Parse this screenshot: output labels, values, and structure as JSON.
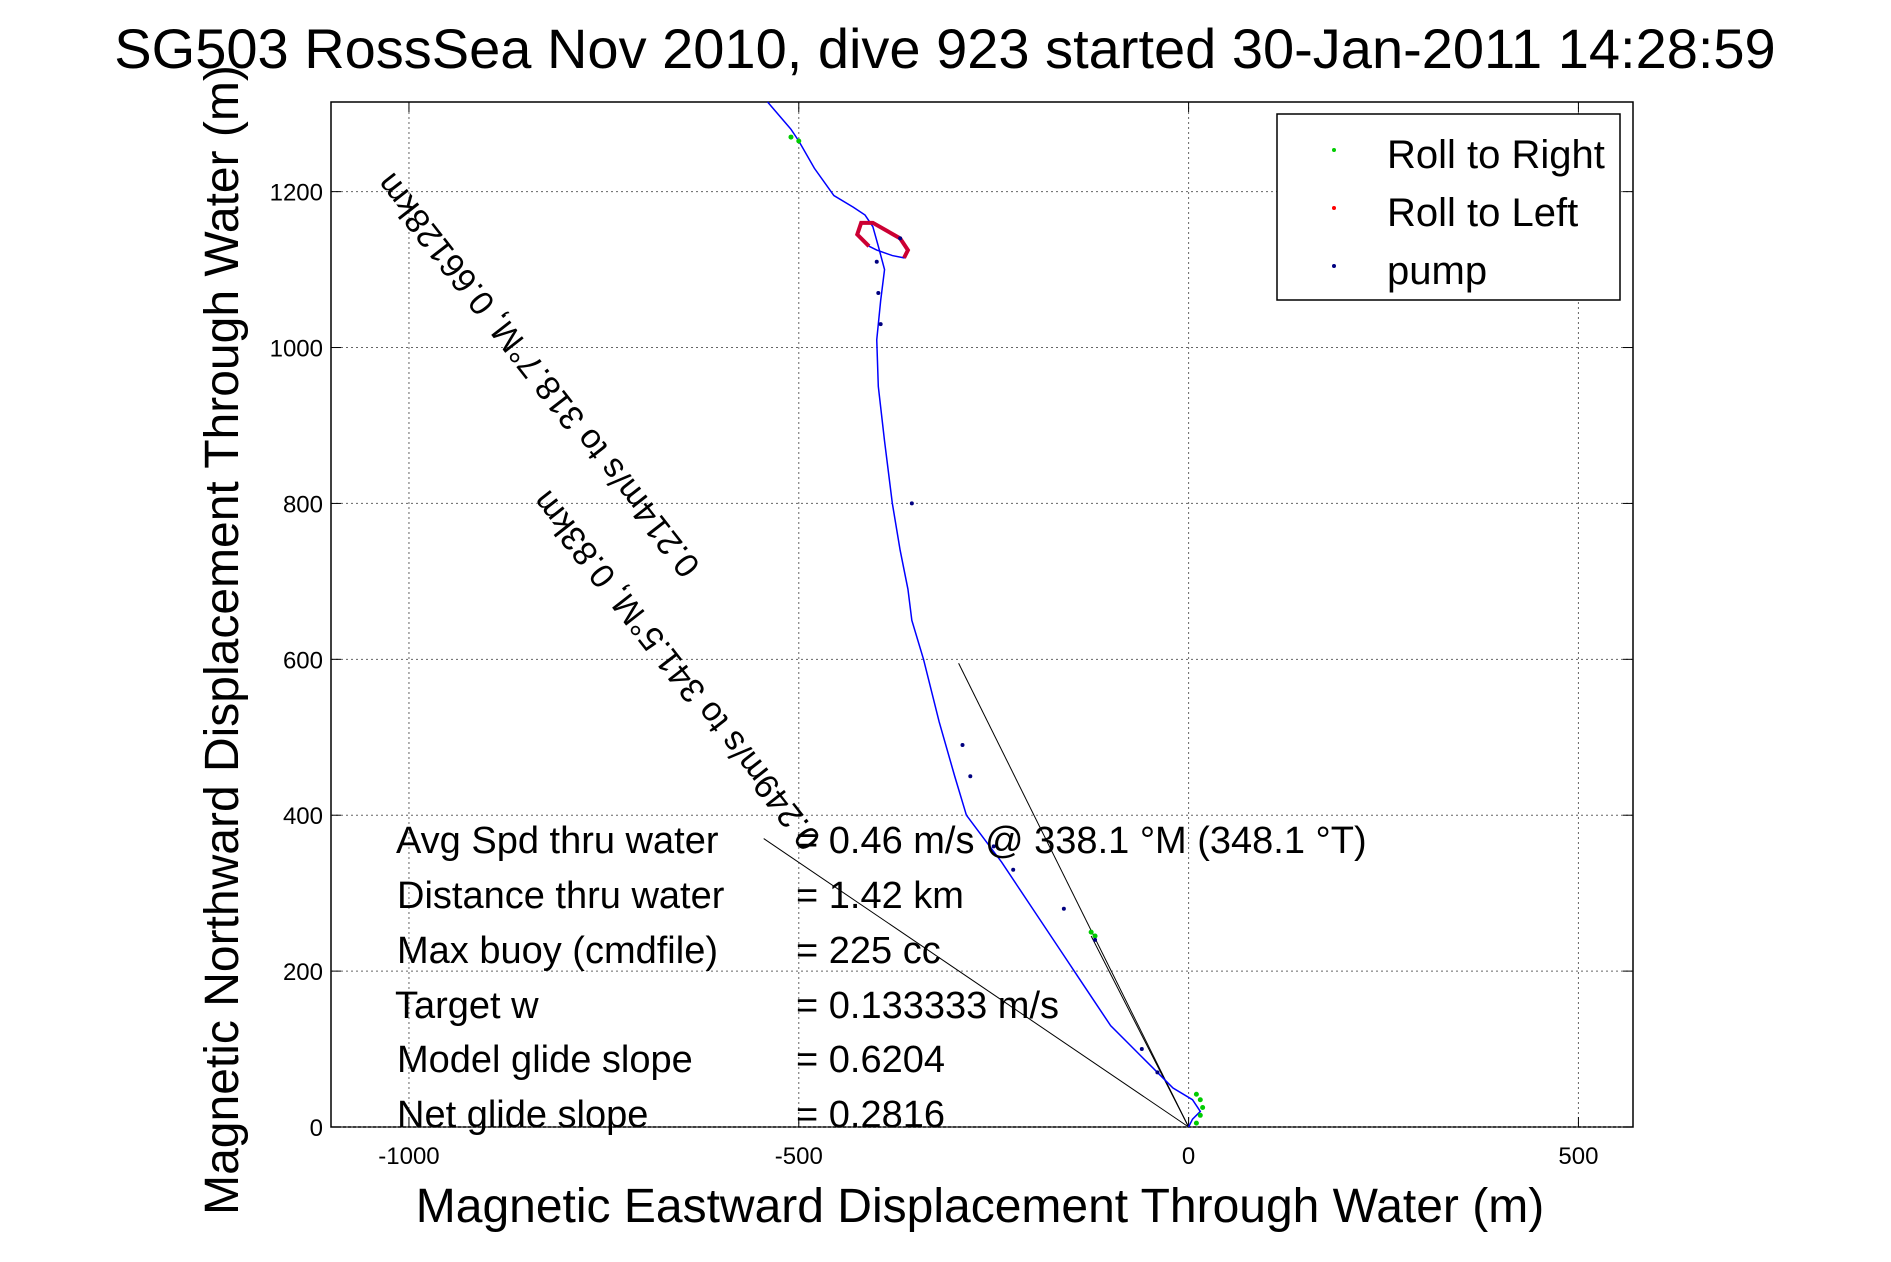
{
  "chart_data": {
    "type": "line",
    "title": "SG503 RossSea Nov 2010, dive 923 started 30-Jan-2011 14:28:59",
    "xlabel": "Magnetic Eastward Displacement Through Water (m)",
    "ylabel": "Magnetic Northward Displacement Through Water (m)",
    "xlim": [
      -1100,
      570
    ],
    "ylim": [
      0,
      1315
    ],
    "xticks": [
      -1000,
      -500,
      0,
      500
    ],
    "yticks": [
      0,
      200,
      400,
      600,
      800,
      1000,
      1200
    ],
    "xtick_labels": [
      "-1000",
      "-500",
      "0",
      "500"
    ],
    "ytick_labels": [
      "0",
      "200",
      "400",
      "600",
      "800",
      "1000",
      "1200"
    ],
    "grid": true,
    "legend_position": "top-right",
    "legend": [
      {
        "label": "Roll to Right",
        "color": "#00cc00"
      },
      {
        "label": "Roll to Left",
        "color": "#ff0000"
      },
      {
        "label": "pump",
        "color": "#000080"
      }
    ],
    "track": {
      "color": "#0000ff",
      "x": [
        -540,
        -510,
        -500,
        -480,
        -455,
        -430,
        -415,
        -405,
        -398,
        -390,
        -395,
        -400,
        -398,
        -390,
        -380,
        -370,
        -360,
        -355,
        -340,
        -320,
        -300,
        -285,
        -270,
        -255,
        -240,
        -220,
        -200,
        -180,
        -160,
        -140,
        -120,
        -100,
        -80,
        -60,
        -40,
        -20,
        5,
        15,
        5,
        0
      ],
      "y": [
        1315,
        1280,
        1265,
        1230,
        1195,
        1180,
        1170,
        1155,
        1130,
        1100,
        1060,
        1010,
        950,
        880,
        800,
        740,
        690,
        650,
        600,
        520,
        450,
        400,
        380,
        360,
        340,
        310,
        280,
        250,
        220,
        190,
        160,
        130,
        110,
        90,
        70,
        50,
        35,
        20,
        10,
        0
      ]
    },
    "loop": {
      "x": [
        -410,
        -425,
        -420,
        -405,
        -390,
        -370,
        -360,
        -365,
        -380,
        -400,
        -410
      ],
      "y": [
        1130,
        1145,
        1160,
        1160,
        1150,
        1140,
        1125,
        1115,
        1118,
        1125,
        1130
      ]
    },
    "roll_right_points": {
      "x": [
        -500,
        -510,
        -120,
        -125,
        10,
        15,
        18,
        15,
        10
      ],
      "y": [
        1265,
        1270,
        245,
        250,
        5,
        15,
        25,
        35,
        42
      ]
    },
    "pump_points": {
      "x": [
        -400,
        -398,
        -395,
        -355,
        -290,
        -280,
        -250,
        -225,
        -160,
        -120,
        -60,
        -40,
        -370
      ],
      "y": [
        1110,
        1070,
        1030,
        800,
        490,
        450,
        360,
        330,
        280,
        240,
        100,
        70,
        1140
      ]
    },
    "guide_lines": [
      {
        "x": [
          0,
          -545
        ],
        "y": [
          0,
          370
        ]
      },
      {
        "x": [
          0,
          -295
        ],
        "y": [
          0,
          595
        ]
      },
      {
        "x": [
          0,
          -125
        ],
        "y": [
          0,
          245
        ]
      }
    ],
    "annotations": [
      {
        "label": "Avg Spd thru water",
        "value": "=  0.46 m/s @ 338.1 °M (348.1 °T)"
      },
      {
        "label": "Distance thru water",
        "value": "=  1.42 km"
      },
      {
        "label": "Max buoy (cmdfile)",
        "value": "= 225 cc"
      },
      {
        "label": "Target w",
        "value": "= 0.133333 m/s"
      },
      {
        "label": "Model glide slope",
        "value": "= 0.6204"
      },
      {
        "label": "Net glide slope",
        "value": "= 0.2816"
      }
    ],
    "rotated_labels": [
      {
        "text": "0.214m/s to 318.7°M, 0.66128km",
        "x": -625,
        "y": 720,
        "angle": -128
      },
      {
        "text": "0.249m/s to 341.5°M, 0.83km",
        "x": -470,
        "y": 370,
        "angle": -128
      }
    ]
  }
}
